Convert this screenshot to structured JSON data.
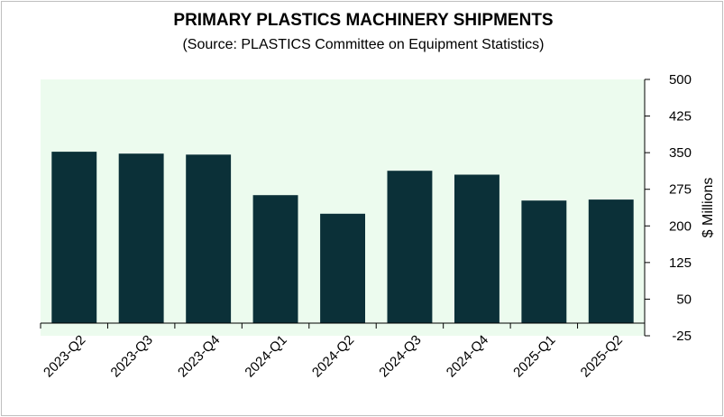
{
  "chart_data": {
    "type": "bar",
    "title": "PRIMARY PLASTICS MACHINERY SHIPMENTS",
    "subtitle": "(Source: PLASTICS Committee on Equipment Statistics)",
    "categories": [
      "2023-Q2",
      "2023-Q3",
      "2023-Q4",
      "2024-Q1",
      "2024-Q2",
      "2024-Q3",
      "2024-Q4",
      "2025-Q1",
      "2025-Q2"
    ],
    "values": [
      352,
      348,
      346,
      263,
      225,
      313,
      305,
      252,
      254
    ],
    "xlabel": "",
    "ylabel": "$ Millions",
    "ylim": [
      -25,
      500
    ],
    "yticks": [
      -25,
      50,
      125,
      200,
      275,
      350,
      425,
      500
    ],
    "yaxis_side": "right",
    "grid": false,
    "legend": "none",
    "colors": {
      "bar": "#0b3038",
      "plot_background": "#ecfbee",
      "axis": "#000000"
    }
  }
}
